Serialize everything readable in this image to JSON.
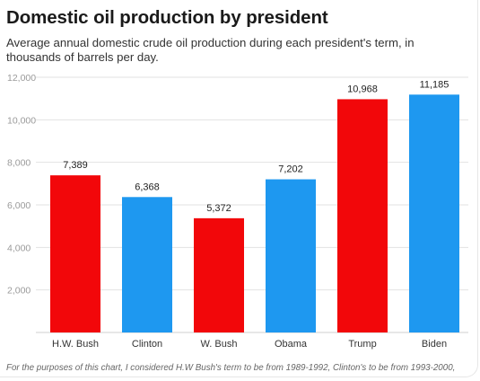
{
  "header": {
    "title": "Domestic oil production by president",
    "subtitle": "Average annual domestic crude oil production during each president's term, in thousands of barrels per day."
  },
  "footnote": "For the purposes of this chart, I considered H.W Bush's term to be from 1989-1992, Clinton's to be from 1993-2000,",
  "colors": {
    "republican": "#f2070a",
    "democrat": "#1e98f0",
    "grid": "#e2e2e2",
    "tick_label": "#9a9a9a",
    "category_label": "#333333",
    "data_label": "#222222"
  },
  "chart_data": {
    "type": "bar",
    "categories": [
      "H.W. Bush",
      "Clinton",
      "W. Bush",
      "Obama",
      "Trump",
      "Biden"
    ],
    "values": [
      7389,
      6368,
      5372,
      7202,
      10968,
      11185
    ],
    "data_labels": [
      "7,389",
      "6,368",
      "5,372",
      "7,202",
      "10,968",
      "11,185"
    ],
    "party": [
      "republican",
      "democrat",
      "republican",
      "democrat",
      "republican",
      "democrat"
    ],
    "title": "Domestic oil production by president",
    "subtitle": "Average annual domestic crude oil production during each president's term, in thousands of barrels per day.",
    "xlabel": "",
    "ylabel": "",
    "ylim": [
      0,
      12000
    ],
    "yticks": [
      2000,
      4000,
      6000,
      8000,
      10000,
      12000
    ],
    "ytick_labels": [
      "2,000",
      "4,000",
      "6,000",
      "8,000",
      "10,000",
      "12,000"
    ],
    "grid": true,
    "legend": "none"
  }
}
